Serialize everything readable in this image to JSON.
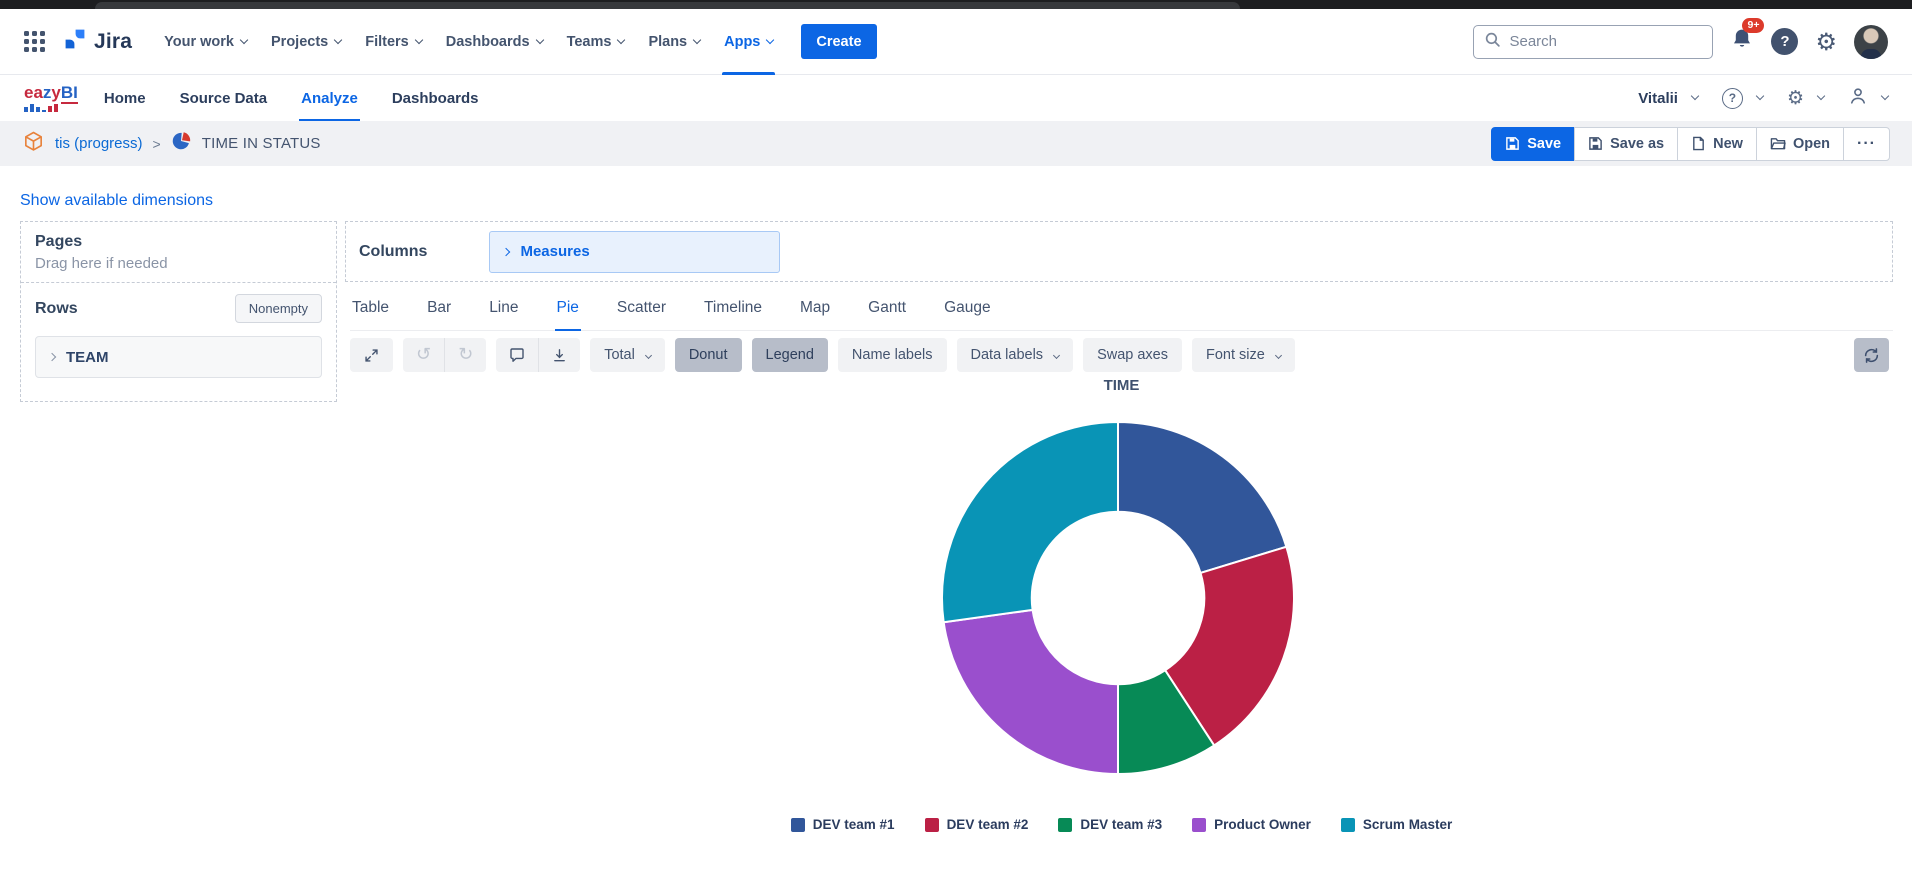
{
  "jira_nav": {
    "logo_label": "Jira",
    "items": [
      {
        "label": "Your work"
      },
      {
        "label": "Projects"
      },
      {
        "label": "Filters"
      },
      {
        "label": "Dashboards"
      },
      {
        "label": "Teams"
      },
      {
        "label": "Plans"
      },
      {
        "label": "Apps"
      }
    ],
    "active_item": "Apps",
    "create_button": "Create",
    "search": {
      "placeholder": "Search"
    },
    "notifications_badge": "9+",
    "accent_color": "#0c66e4"
  },
  "eazybi_nav": {
    "logo_part1": "ea",
    "logo_part2": "z",
    "logo_part3": "y",
    "logo_part4": "BI",
    "items": [
      {
        "label": "Home"
      },
      {
        "label": "Source Data"
      },
      {
        "label": "Analyze"
      },
      {
        "label": "Dashboards"
      }
    ],
    "active_item": "Analyze",
    "user_menu": "Vitalii"
  },
  "report_bar": {
    "account_link": "tis (progress)",
    "separator": ">",
    "report_title": "TIME IN STATUS",
    "buttons": {
      "save": "Save",
      "save_as": "Save as",
      "new": "New",
      "open": "Open",
      "more": "···"
    }
  },
  "analyze": {
    "show_dimensions_link": "Show available dimensions",
    "pages_label": "Pages",
    "pages_hint": "Drag here if needed",
    "rows_label": "Rows",
    "nonempty_button": "Nonempty",
    "rows_member": "TEAM",
    "columns_label": "Columns",
    "columns_member": "Measures"
  },
  "chart_tabs": {
    "items": [
      {
        "label": "Table"
      },
      {
        "label": "Bar"
      },
      {
        "label": "Line"
      },
      {
        "label": "Pie"
      },
      {
        "label": "Scatter"
      },
      {
        "label": "Timeline"
      },
      {
        "label": "Map"
      },
      {
        "label": "Gantt"
      },
      {
        "label": "Gauge"
      }
    ],
    "active": "Pie"
  },
  "toolbar": {
    "total_button": "Total",
    "donut_button": "Donut",
    "legend_button": "Legend",
    "name_labels_button": "Name labels",
    "data_labels_button": "Data labels",
    "swap_axes_button": "Swap axes",
    "font_size_button": "Font size",
    "pressed_buttons": [
      "Donut",
      "Legend"
    ]
  },
  "chart_data": {
    "type": "pie",
    "title": "TIME",
    "donut": true,
    "inner_radius_ratio": 0.49,
    "start_angle_deg": 0,
    "direction": "clockwise",
    "legend_position": "bottom",
    "categories": [
      "DEV team #1",
      "DEV team #2",
      "DEV team #3",
      "Product Owner",
      "Scrum Master"
    ],
    "values": [
      20.3,
      20.5,
      9.2,
      22.8,
      27.2
    ],
    "unit": "percent_of_total_time",
    "colors": [
      "#31569a",
      "#bb2045",
      "#078a56",
      "#9a4fcd",
      "#0994b6"
    ],
    "slice_border_color": "#ffffff"
  }
}
